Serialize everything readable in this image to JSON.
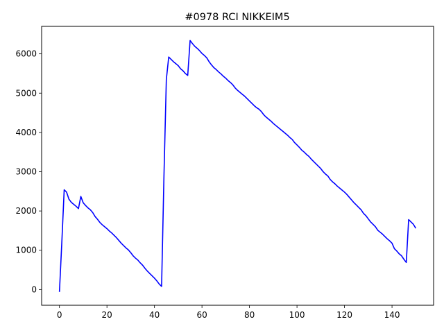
{
  "chart_data": {
    "type": "line",
    "title": "#0978 RCI NIKKEIM5",
    "xlabel": "",
    "ylabel": "",
    "xlim": [
      -7.5,
      157.5
    ],
    "ylim": [
      -400,
      6700
    ],
    "xticks": [
      0,
      20,
      40,
      60,
      80,
      100,
      120,
      140
    ],
    "yticks": [
      0,
      1000,
      2000,
      3000,
      4000,
      5000,
      6000
    ],
    "grid": false,
    "legend": "none",
    "series": [
      {
        "color": "#0000ff",
        "points": [
          [
            0,
            -60
          ],
          [
            1,
            1200
          ],
          [
            2,
            2540
          ],
          [
            3,
            2480
          ],
          [
            4,
            2300
          ],
          [
            5,
            2220
          ],
          [
            6,
            2170
          ],
          [
            7,
            2120
          ],
          [
            8,
            2060
          ],
          [
            9,
            2370
          ],
          [
            10,
            2210
          ],
          [
            11,
            2140
          ],
          [
            12,
            2080
          ],
          [
            13,
            2030
          ],
          [
            14,
            1960
          ],
          [
            15,
            1860
          ],
          [
            16,
            1790
          ],
          [
            17,
            1710
          ],
          [
            18,
            1650
          ],
          [
            19,
            1600
          ],
          [
            20,
            1550
          ],
          [
            21,
            1490
          ],
          [
            22,
            1440
          ],
          [
            23,
            1380
          ],
          [
            24,
            1320
          ],
          [
            25,
            1250
          ],
          [
            26,
            1180
          ],
          [
            27,
            1120
          ],
          [
            28,
            1060
          ],
          [
            29,
            1010
          ],
          [
            30,
            940
          ],
          [
            31,
            860
          ],
          [
            32,
            800
          ],
          [
            33,
            750
          ],
          [
            34,
            680
          ],
          [
            35,
            620
          ],
          [
            36,
            540
          ],
          [
            37,
            470
          ],
          [
            38,
            410
          ],
          [
            39,
            350
          ],
          [
            40,
            290
          ],
          [
            41,
            220
          ],
          [
            42,
            140
          ],
          [
            43,
            80
          ],
          [
            44,
            2900
          ],
          [
            45,
            5350
          ],
          [
            46,
            5920
          ],
          [
            47,
            5860
          ],
          [
            48,
            5800
          ],
          [
            49,
            5750
          ],
          [
            50,
            5700
          ],
          [
            51,
            5620
          ],
          [
            52,
            5570
          ],
          [
            53,
            5500
          ],
          [
            54,
            5450
          ],
          [
            55,
            6340
          ],
          [
            56,
            6260
          ],
          [
            57,
            6190
          ],
          [
            58,
            6140
          ],
          [
            59,
            6080
          ],
          [
            60,
            6010
          ],
          [
            61,
            5960
          ],
          [
            62,
            5900
          ],
          [
            63,
            5800
          ],
          [
            64,
            5720
          ],
          [
            65,
            5650
          ],
          [
            66,
            5600
          ],
          [
            67,
            5540
          ],
          [
            68,
            5490
          ],
          [
            69,
            5430
          ],
          [
            70,
            5380
          ],
          [
            71,
            5320
          ],
          [
            72,
            5270
          ],
          [
            73,
            5210
          ],
          [
            74,
            5130
          ],
          [
            75,
            5070
          ],
          [
            76,
            5020
          ],
          [
            77,
            4970
          ],
          [
            78,
            4920
          ],
          [
            79,
            4860
          ],
          [
            80,
            4800
          ],
          [
            81,
            4740
          ],
          [
            82,
            4680
          ],
          [
            83,
            4630
          ],
          [
            84,
            4590
          ],
          [
            85,
            4530
          ],
          [
            86,
            4450
          ],
          [
            87,
            4390
          ],
          [
            88,
            4340
          ],
          [
            89,
            4290
          ],
          [
            90,
            4230
          ],
          [
            91,
            4180
          ],
          [
            92,
            4130
          ],
          [
            93,
            4080
          ],
          [
            94,
            4030
          ],
          [
            95,
            3980
          ],
          [
            96,
            3930
          ],
          [
            97,
            3870
          ],
          [
            98,
            3820
          ],
          [
            99,
            3740
          ],
          [
            100,
            3680
          ],
          [
            101,
            3620
          ],
          [
            102,
            3550
          ],
          [
            103,
            3500
          ],
          [
            104,
            3440
          ],
          [
            105,
            3390
          ],
          [
            106,
            3320
          ],
          [
            107,
            3260
          ],
          [
            108,
            3200
          ],
          [
            109,
            3140
          ],
          [
            110,
            3080
          ],
          [
            111,
            3000
          ],
          [
            112,
            2940
          ],
          [
            113,
            2890
          ],
          [
            114,
            2800
          ],
          [
            115,
            2740
          ],
          [
            116,
            2690
          ],
          [
            117,
            2630
          ],
          [
            118,
            2580
          ],
          [
            119,
            2530
          ],
          [
            120,
            2480
          ],
          [
            121,
            2420
          ],
          [
            122,
            2350
          ],
          [
            123,
            2280
          ],
          [
            124,
            2210
          ],
          [
            125,
            2150
          ],
          [
            126,
            2090
          ],
          [
            127,
            2030
          ],
          [
            128,
            1940
          ],
          [
            129,
            1880
          ],
          [
            130,
            1800
          ],
          [
            131,
            1720
          ],
          [
            132,
            1660
          ],
          [
            133,
            1600
          ],
          [
            134,
            1510
          ],
          [
            135,
            1460
          ],
          [
            136,
            1410
          ],
          [
            137,
            1350
          ],
          [
            138,
            1290
          ],
          [
            139,
            1240
          ],
          [
            140,
            1180
          ],
          [
            141,
            1040
          ],
          [
            142,
            980
          ],
          [
            143,
            910
          ],
          [
            144,
            860
          ],
          [
            145,
            770
          ],
          [
            146,
            690
          ],
          [
            147,
            1780
          ],
          [
            148,
            1720
          ],
          [
            149,
            1660
          ],
          [
            150,
            1560
          ]
        ]
      }
    ]
  }
}
